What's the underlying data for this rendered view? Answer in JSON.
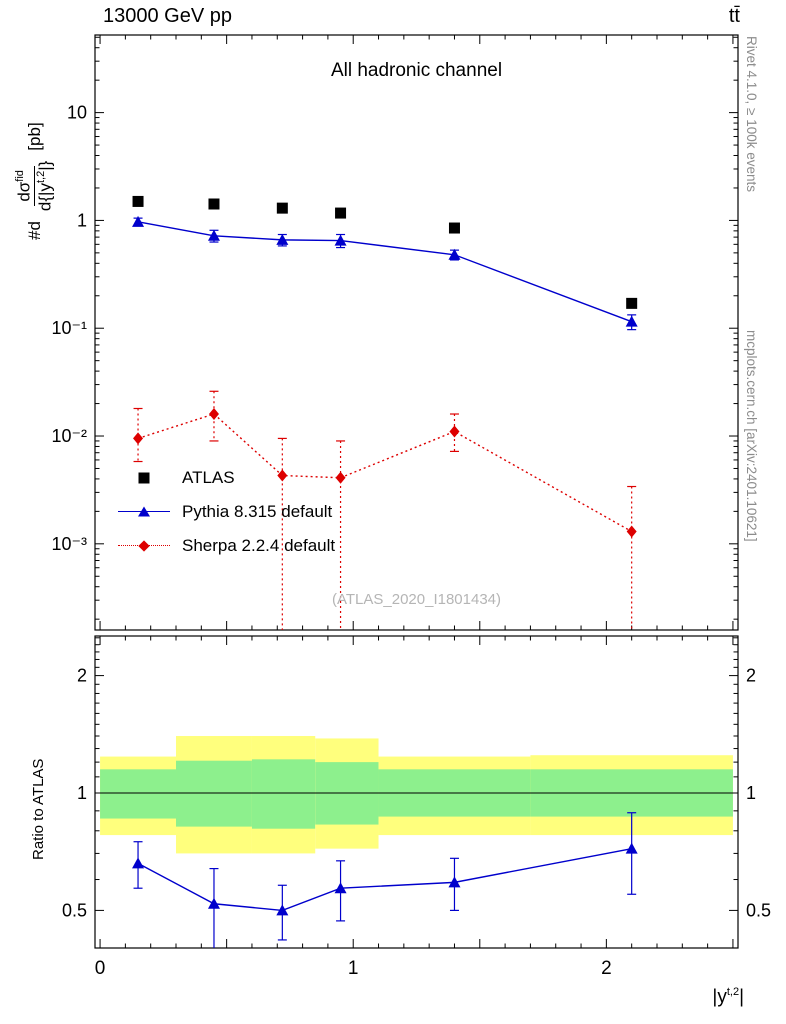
{
  "header": {
    "left": "13000 GeV pp",
    "right": "tt̄"
  },
  "watermark": "(ATLAS_2020_I1801434)",
  "side_notes": {
    "top_right": "Rivet 4.1.0, ≥ 100k events",
    "bottom_right": "mcplots.cern.ch [arXiv:2401.10621]"
  },
  "labels": {
    "ylabel_main": {
      "prefix": "#d",
      "num": "dσ",
      "num_sup": "fid",
      "den_a": "d{|y",
      "den_sup": "t,2",
      "den_b": "|}",
      "unit": "[pb]"
    },
    "ylabel_ratio": "Ratio to ATLAS",
    "xlabel": {
      "a": "|y",
      "sup": "t,2",
      "b": "|"
    }
  },
  "colors": {
    "atlas": "#000000",
    "pythia": "#0000cc",
    "sherpa": "#dd0000",
    "band_outer": "#ffff7d",
    "band_inner": "#8df08d",
    "watermark": "#b5b5b5",
    "side_note": "#8c8c8c"
  },
  "chart_data": {
    "type": "line",
    "title": "All hadronic channel",
    "xlabel": "|y^{t,2}|",
    "ylabel": "#d dσ^{fid} / d{|y^{t,2}|} [pb]",
    "ratio_label": "Ratio to ATLAS",
    "x_axis": {
      "min": 0,
      "max": 2.5,
      "minor_step": 0.1,
      "major_step": 0.5,
      "tick_labels": [
        {
          "v": 0,
          "t": "0"
        },
        {
          "v": 1,
          "t": "1"
        },
        {
          "v": 2,
          "t": "2"
        }
      ]
    },
    "main_axis": {
      "scale": "log",
      "unit": "pb",
      "tick_labels": [
        {
          "v": 10,
          "t": "10"
        },
        {
          "v": 1,
          "t": "1"
        },
        {
          "v": 0.1,
          "t": "10⁻¹"
        },
        {
          "v": 0.01,
          "t": "10⁻²"
        },
        {
          "v": 0.001,
          "t": "10⁻³"
        }
      ]
    },
    "ratio_axis": {
      "scale": "log",
      "tick_labels": [
        {
          "v": 2,
          "t": "2"
        },
        {
          "v": 1,
          "t": "1"
        },
        {
          "v": 0.5,
          "t": "0.5"
        }
      ]
    },
    "x": [
      0.15,
      0.45,
      0.72,
      0.95,
      1.4,
      2.1
    ],
    "series": [
      {
        "name": "ATLAS",
        "color": "#000000",
        "marker": "square",
        "line": "none",
        "values": [
          1.5,
          1.42,
          1.3,
          1.17,
          0.85,
          0.17
        ],
        "err": [
          0.09,
          0.09,
          0.08,
          0.07,
          0.05,
          0.012
        ]
      },
      {
        "name": "Pythia 8.315 default",
        "color": "#0000cc",
        "marker": "triangle",
        "line": "solid",
        "values": [
          0.97,
          0.72,
          0.66,
          0.65,
          0.48,
          0.115
        ],
        "err": [
          0.08,
          0.09,
          0.08,
          0.09,
          0.05,
          0.018
        ]
      },
      {
        "name": "Sherpa 2.2.4 default",
        "color": "#dd0000",
        "marker": "diamond",
        "line": "dotted",
        "values": [
          0.0095,
          0.016,
          0.0043,
          0.0041,
          0.011,
          0.0013
        ],
        "lo": [
          0.0058,
          0.009,
          0.0001,
          0.0001,
          0.0072,
          0.0001
        ],
        "hi": [
          0.018,
          0.026,
          0.0095,
          0.009,
          0.016,
          0.0034
        ]
      }
    ],
    "ratio": {
      "bins": [
        [
          0,
          0.3
        ],
        [
          0.3,
          0.6
        ],
        [
          0.6,
          0.85
        ],
        [
          0.85,
          1.1
        ],
        [
          1.1,
          1.7
        ],
        [
          1.7,
          2.5
        ]
      ],
      "outer_band": [
        [
          0.78,
          1.24
        ],
        [
          0.7,
          1.4
        ],
        [
          0.7,
          1.4
        ],
        [
          0.72,
          1.38
        ],
        [
          0.78,
          1.24
        ],
        [
          0.78,
          1.25
        ]
      ],
      "inner_band": [
        [
          0.86,
          1.15
        ],
        [
          0.82,
          1.21
        ],
        [
          0.81,
          1.22
        ],
        [
          0.83,
          1.2
        ],
        [
          0.87,
          1.15
        ],
        [
          0.87,
          1.15
        ]
      ],
      "points": {
        "name": "Pythia 8.315 default / ATLAS",
        "color": "#0000cc",
        "marker": "triangle",
        "values": [
          0.66,
          0.52,
          0.5,
          0.57,
          0.59,
          0.72
        ],
        "err": [
          0.09,
          0.12,
          0.08,
          0.1,
          0.09,
          0.17
        ]
      }
    }
  }
}
